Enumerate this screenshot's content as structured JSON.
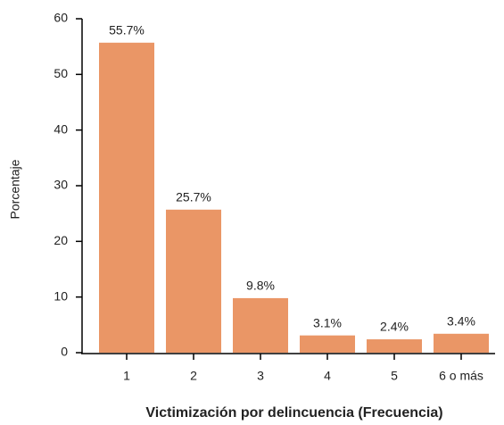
{
  "chart_data": {
    "type": "bar",
    "categories": [
      "1",
      "2",
      "3",
      "4",
      "5",
      "6 o más"
    ],
    "values": [
      55.7,
      25.7,
      9.8,
      3.1,
      2.4,
      3.4
    ],
    "value_labels": [
      "55.7%",
      "25.7%",
      "9.8%",
      "3.1%",
      "2.4%",
      "3.4%"
    ],
    "color": "#ea9666",
    "xlabel": "Victimización por delincuencia (Frecuencia)",
    "ylabel": "Porcentaje",
    "ylim": [
      0,
      60
    ],
    "yticks": [
      0,
      10,
      20,
      30,
      40,
      50,
      60
    ],
    "grid": false
  }
}
